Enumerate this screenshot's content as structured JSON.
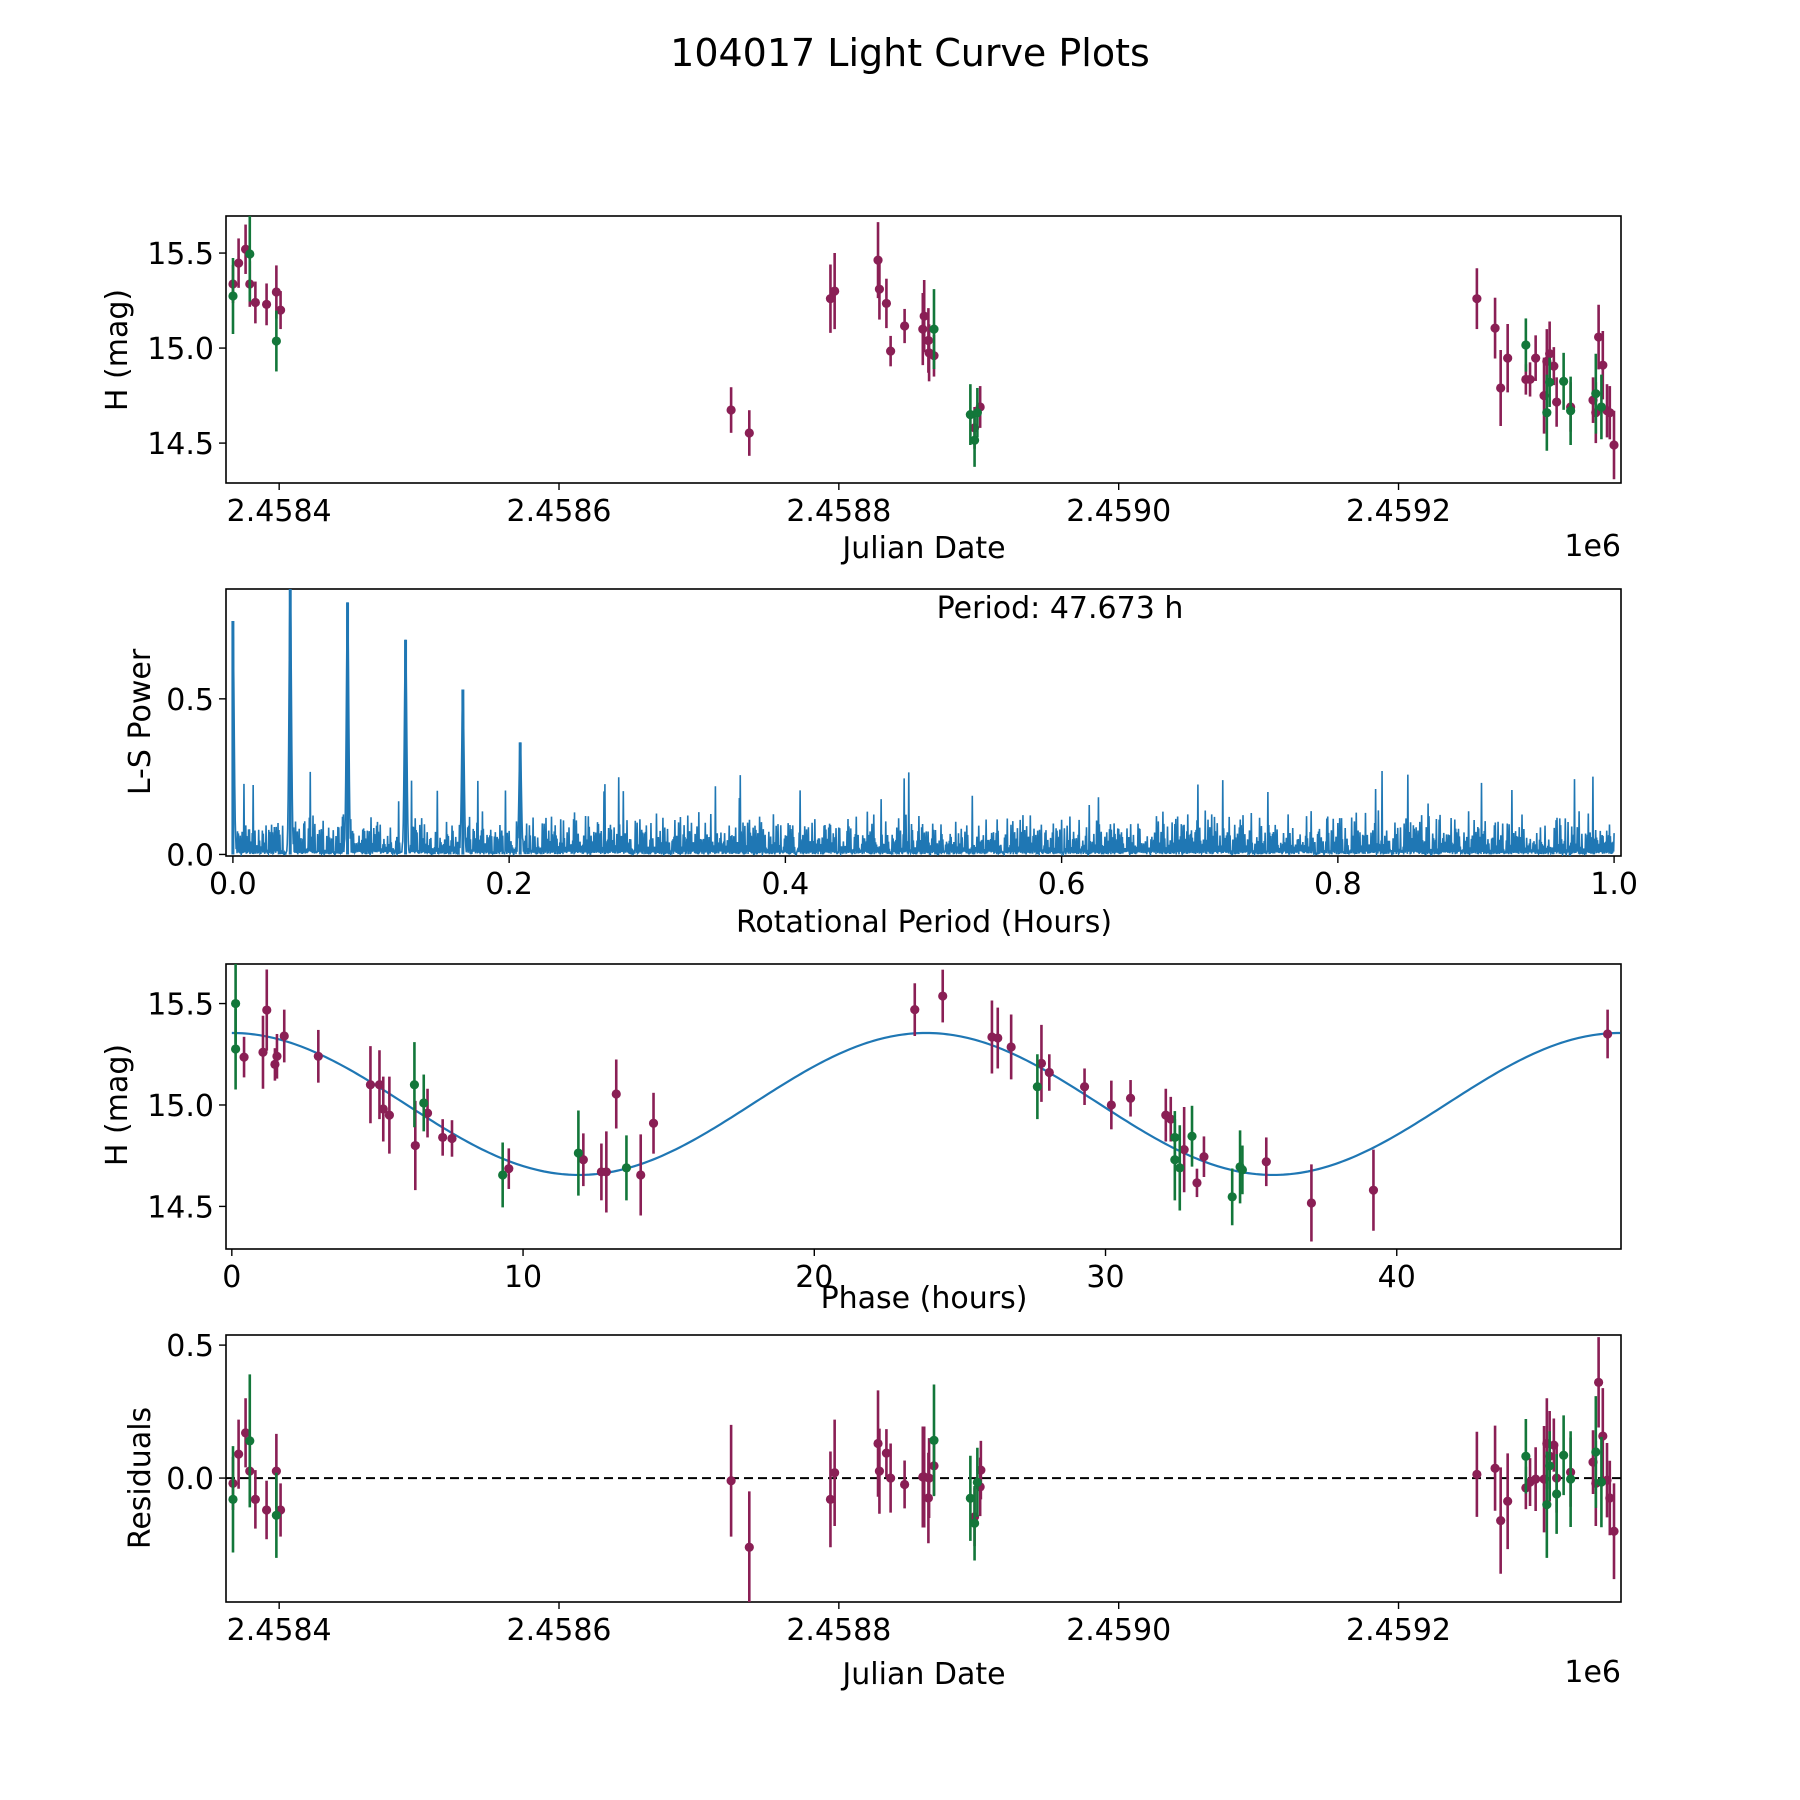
{
  "figure": {
    "title": "104017 Light Curve Plots",
    "colors": {
      "series_a": "#8a1f55",
      "series_b": "#13773a",
      "periodogram": "#1f77b4",
      "model": "#1f77b4",
      "zero_line": "#000000"
    }
  },
  "chart_data": [
    {
      "id": "light-curve",
      "type": "scatter",
      "title": "",
      "xlabel": "Julian Date",
      "ylabel": "H (mag)",
      "x_offset_label": "1e6",
      "xlim": [
        2458362,
        2459359
      ],
      "ylim": [
        14.29,
        15.695
      ],
      "xticks": [
        2458400,
        2458600,
        2458800,
        2459000,
        2459200
      ],
      "xtick_labels": [
        "2.4584",
        "2.4586",
        "2.4588",
        "2.4590",
        "2.4592"
      ],
      "yticks": [
        14.5,
        15.0,
        15.5
      ],
      "ytick_labels": [
        "14.5",
        "15.0",
        "15.5"
      ],
      "series": [
        {
          "name": "maroon",
          "points": [
            [
              2458367,
              15.337,
              0.1
            ],
            [
              2458371,
              15.447,
              0.13
            ],
            [
              2458376,
              15.52,
              0.13
            ],
            [
              2458379,
              15.337,
              0.12
            ],
            [
              2458383,
              15.24,
              0.11
            ],
            [
              2458391,
              15.23,
              0.11
            ],
            [
              2458398,
              15.295,
              0.14
            ],
            [
              2458401,
              15.2,
              0.1
            ],
            [
              2458723,
              14.674,
              0.12
            ],
            [
              2458736,
              14.553,
              0.12
            ],
            [
              2458794,
              15.26,
              0.18
            ],
            [
              2458797,
              15.3,
              0.2
            ],
            [
              2458828,
              15.463,
              0.2
            ],
            [
              2458829,
              15.31,
              0.16
            ],
            [
              2458834,
              15.235,
              0.13
            ],
            [
              2458837,
              14.984,
              0.08
            ],
            [
              2458847,
              15.116,
              0.09
            ],
            [
              2458861,
              15.168,
              0.19
            ],
            [
              2458860,
              15.1,
              0.19
            ],
            [
              2458864,
              15.04,
              0.17
            ],
            [
              2458864.5,
              14.975,
              0.15
            ],
            [
              2458868,
              14.96,
              0.11
            ],
            [
              2458897,
              14.58,
              0.11
            ],
            [
              2458901,
              14.69,
              0.11
            ],
            [
              2459256,
              15.26,
              0.16
            ],
            [
              2459269,
              15.105,
              0.16
            ],
            [
              2459273,
              14.79,
              0.2
            ],
            [
              2459278,
              14.947,
              0.18
            ],
            [
              2459291,
              14.835,
              0.08
            ],
            [
              2459294,
              14.835,
              0.09
            ],
            [
              2459298,
              14.947,
              0.12
            ],
            [
              2459304,
              14.75,
              0.2
            ],
            [
              2459306,
              14.93,
              0.17
            ],
            [
              2459308,
              14.97,
              0.17
            ],
            [
              2459311,
              14.905,
              0.1
            ],
            [
              2459313,
              14.716,
              0.13
            ],
            [
              2459323,
              14.69,
              0.13
            ],
            [
              2459339,
              14.726,
              0.12
            ],
            [
              2459341,
              14.66,
              0.16
            ],
            [
              2459343,
              15.058,
              0.17
            ],
            [
              2459346,
              14.91,
              0.18
            ],
            [
              2459349,
              14.67,
              0.14
            ],
            [
              2459351,
              14.66,
              0.14
            ],
            [
              2459354,
              14.49,
              0.18
            ]
          ]
        },
        {
          "name": "green",
          "points": [
            [
              2458367,
              15.274,
              0.2
            ],
            [
              2458379,
              15.495,
              0.25
            ],
            [
              2458398,
              15.037,
              0.16
            ],
            [
              2458868,
              15.1,
              0.21
            ],
            [
              2458894,
              14.65,
              0.16
            ],
            [
              2458897,
              14.515,
              0.14
            ],
            [
              2458899,
              14.66,
              0.13
            ],
            [
              2459291,
              15.016,
              0.14
            ],
            [
              2459306,
              14.66,
              0.2
            ],
            [
              2459308,
              14.82,
              0.13
            ],
            [
              2459318,
              14.825,
              0.15
            ],
            [
              2459323,
              14.67,
              0.18
            ],
            [
              2459341,
              14.76,
              0.21
            ],
            [
              2459345,
              14.69,
              0.17
            ]
          ]
        }
      ]
    },
    {
      "id": "periodogram",
      "type": "line",
      "xlabel": "Rotational Period (Hours)",
      "ylabel": "L-S Power",
      "annotation": "Period: 47.673 h",
      "xlim": [
        -0.005,
        1.005
      ],
      "ylim": [
        -0.005,
        0.853
      ],
      "xticks": [
        0.0,
        0.2,
        0.4,
        0.6,
        0.8,
        1.0
      ],
      "xtick_labels": [
        "0.0",
        "0.2",
        "0.4",
        "0.6",
        "0.8",
        "1.0"
      ],
      "yticks": [
        0.0,
        0.5
      ],
      "ytick_labels": [
        "0.0",
        "0.5"
      ],
      "peaks": [
        [
          0.0,
          0.75
        ],
        [
          0.0415,
          0.86
        ],
        [
          0.083,
          0.81
        ],
        [
          0.125,
          0.69
        ],
        [
          0.1665,
          0.53
        ],
        [
          0.208,
          0.36
        ]
      ],
      "noise_typical_max": 0.15,
      "noise_occasional_max": 0.27
    },
    {
      "id": "phased",
      "type": "scatter",
      "xlabel": "Phase (hours)",
      "ylabel": "H (mag)",
      "xlim": [
        -0.2,
        47.7
      ],
      "ylim": [
        14.29,
        15.695
      ],
      "xticks": [
        0,
        10,
        20,
        30,
        40
      ],
      "xtick_labels": [
        "0",
        "10",
        "20",
        "30",
        "40"
      ],
      "yticks": [
        14.5,
        15.0,
        15.5
      ],
      "ytick_labels": [
        "14.5",
        "15.0",
        "15.5"
      ],
      "model": {
        "mean": 15.005,
        "amplitude": 0.35,
        "cycle_hours": 23.8365,
        "peak_phase": 0.0,
        "x_range": [
          0,
          47.673
        ]
      },
      "series": [
        {
          "name": "maroon",
          "points": [
            [
              0.42,
              15.236,
              0.1
            ],
            [
              1.07,
              15.26,
              0.18
            ],
            [
              1.2,
              15.468,
              0.2
            ],
            [
              1.48,
              15.2,
              0.08
            ],
            [
              1.55,
              15.24,
              0.11
            ],
            [
              1.8,
              15.34,
              0.13
            ],
            [
              2.97,
              15.24,
              0.13
            ],
            [
              4.76,
              15.1,
              0.19
            ],
            [
              5.07,
              15.1,
              0.17
            ],
            [
              5.2,
              14.98,
              0.16
            ],
            [
              5.41,
              14.95,
              0.19
            ],
            [
              6.3,
              14.8,
              0.22
            ],
            [
              6.72,
              14.96,
              0.12
            ],
            [
              7.24,
              14.84,
              0.09
            ],
            [
              7.56,
              14.835,
              0.09
            ],
            [
              9.51,
              14.686,
              0.1
            ],
            [
              12.07,
              14.73,
              0.13
            ],
            [
              12.69,
              14.67,
              0.14
            ],
            [
              12.86,
              14.67,
              0.2
            ],
            [
              13.2,
              15.054,
              0.17
            ],
            [
              14.04,
              14.655,
              0.2
            ],
            [
              14.48,
              14.91,
              0.15
            ],
            [
              23.45,
              15.47,
              0.13
            ],
            [
              24.41,
              15.537,
              0.13
            ],
            [
              26.1,
              15.335,
              0.18
            ],
            [
              26.3,
              15.33,
              0.15
            ],
            [
              26.76,
              15.286,
              0.16
            ],
            [
              27.8,
              15.205,
              0.19
            ],
            [
              28.07,
              15.16,
              0.09
            ],
            [
              29.28,
              15.09,
              0.09
            ],
            [
              30.2,
              15.0,
              0.12
            ],
            [
              30.86,
              15.033,
              0.09
            ],
            [
              32.07,
              14.95,
              0.13
            ],
            [
              32.24,
              14.93,
              0.11
            ],
            [
              32.7,
              14.78,
              0.21
            ],
            [
              33.14,
              14.616,
              0.07
            ],
            [
              33.38,
              14.745,
              0.1
            ],
            [
              35.52,
              14.72,
              0.12
            ],
            [
              37.07,
              14.517,
              0.19
            ],
            [
              39.2,
              14.58,
              0.2
            ],
            [
              47.24,
              15.35,
              0.12
            ]
          ]
        },
        {
          "name": "green",
          "points": [
            [
              0.13,
              15.5,
              0.2
            ],
            [
              0.13,
              15.276,
              0.2
            ],
            [
              6.27,
              15.1,
              0.21
            ],
            [
              6.59,
              15.01,
              0.14
            ],
            [
              9.3,
              14.655,
              0.16
            ],
            [
              11.9,
              14.763,
              0.21
            ],
            [
              13.55,
              14.69,
              0.16
            ],
            [
              27.66,
              15.09,
              0.16
            ],
            [
              32.38,
              14.84,
              0.13
            ],
            [
              32.38,
              14.73,
              0.2
            ],
            [
              32.55,
              14.69,
              0.21
            ],
            [
              32.97,
              14.846,
              0.15
            ],
            [
              34.35,
              14.547,
              0.14
            ],
            [
              34.62,
              14.695,
              0.18
            ],
            [
              34.7,
              14.68,
              0.12
            ]
          ]
        }
      ]
    },
    {
      "id": "residuals",
      "type": "scatter",
      "xlabel": "Julian Date",
      "ylabel": "Residuals",
      "x_offset_label": "1e6",
      "xlim": [
        2458362,
        2459359
      ],
      "ylim": [
        -0.466,
        0.538
      ],
      "xticks": [
        2458400,
        2458600,
        2458800,
        2459000,
        2459200
      ],
      "xtick_labels": [
        "2.4584",
        "2.4586",
        "2.4588",
        "2.4590",
        "2.4592"
      ],
      "yticks": [
        0.0,
        0.5
      ],
      "ytick_labels": [
        "0.0",
        "0.5"
      ],
      "reference_line": 0.0,
      "series": [
        {
          "name": "maroon",
          "points": [
            [
              2458367,
              -0.02,
              0.1
            ],
            [
              2458371,
              0.09,
              0.13
            ],
            [
              2458376,
              0.17,
              0.13
            ],
            [
              2458379,
              0.026,
              0.12
            ],
            [
              2458383,
              -0.08,
              0.11
            ],
            [
              2458391,
              -0.12,
              0.11
            ],
            [
              2458398,
              0.026,
              0.14
            ],
            [
              2458401,
              -0.12,
              0.1
            ],
            [
              2458723,
              -0.01,
              0.21
            ],
            [
              2458736,
              -0.26,
              0.21
            ],
            [
              2458794,
              -0.08,
              0.18
            ],
            [
              2458797,
              0.02,
              0.2
            ],
            [
              2458828,
              0.13,
              0.2
            ],
            [
              2458829,
              0.026,
              0.16
            ],
            [
              2458834,
              0.094,
              0.09
            ],
            [
              2458837,
              0.0,
              0.13
            ],
            [
              2458847,
              -0.024,
              0.09
            ],
            [
              2458861,
              0.004,
              0.19
            ],
            [
              2458860,
              0.004,
              0.19
            ],
            [
              2458864,
              -0.075,
              0.17
            ],
            [
              2458864.5,
              0.0,
              0.15
            ],
            [
              2458868,
              0.046,
              0.11
            ],
            [
              2458897,
              -0.146,
              0.11
            ],
            [
              2458901,
              -0.033,
              0.11
            ],
            [
              2458901.5,
              0.03,
              0.11
            ],
            [
              2459256,
              0.014,
              0.16
            ],
            [
              2459269,
              0.037,
              0.16
            ],
            [
              2459273,
              -0.16,
              0.2
            ],
            [
              2459278,
              -0.087,
              0.18
            ],
            [
              2459291,
              -0.037,
              0.08
            ],
            [
              2459294,
              -0.015,
              0.09
            ],
            [
              2459298,
              -0.004,
              0.12
            ],
            [
              2459304,
              -0.004,
              0.2
            ],
            [
              2459306,
              0.13,
              0.17
            ],
            [
              2459308,
              0.082,
              0.17
            ],
            [
              2459311,
              0.124,
              0.1
            ],
            [
              2459313,
              0.0,
              0.13
            ],
            [
              2459323,
              0.022,
              0.13
            ],
            [
              2459339,
              0.06,
              0.12
            ],
            [
              2459341,
              -0.02,
              0.16
            ],
            [
              2459343,
              0.36,
              0.17
            ],
            [
              2459346,
              0.158,
              0.18
            ],
            [
              2459349,
              -0.008,
              0.14
            ],
            [
              2459351,
              -0.075,
              0.14
            ],
            [
              2459354,
              -0.2,
              0.18
            ]
          ]
        },
        {
          "name": "green",
          "points": [
            [
              2458367,
              -0.08,
              0.2
            ],
            [
              2458379,
              0.14,
              0.25
            ],
            [
              2458398,
              -0.14,
              0.16
            ],
            [
              2458868,
              0.142,
              0.21
            ],
            [
              2458894,
              -0.076,
              0.16
            ],
            [
              2458897,
              -0.17,
              0.14
            ],
            [
              2458899,
              -0.016,
              0.13
            ],
            [
              2459291,
              0.082,
              0.14
            ],
            [
              2459306,
              -0.1,
              0.2
            ],
            [
              2459308,
              0.046,
              0.13
            ],
            [
              2459318,
              0.086,
              0.15
            ],
            [
              2459313,
              -0.06,
              0.15
            ],
            [
              2459323,
              -0.004,
              0.18
            ],
            [
              2459341,
              0.098,
              0.21
            ],
            [
              2459345,
              -0.015,
              0.17
            ]
          ]
        }
      ]
    }
  ]
}
